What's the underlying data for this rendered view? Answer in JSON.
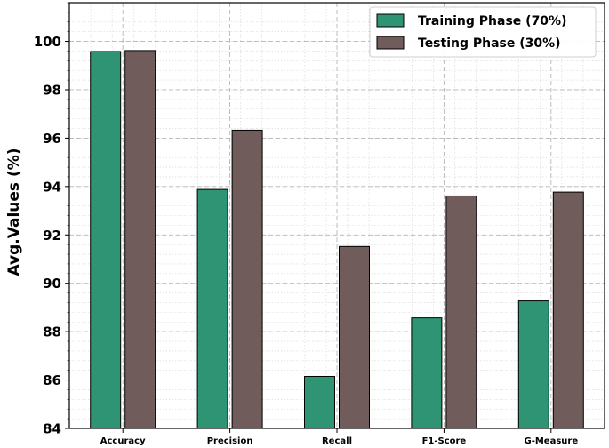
{
  "chart_data": {
    "type": "bar",
    "categories": [
      "Accuracy",
      "Precision",
      "Recall",
      "F1-Score",
      "G-Measure"
    ],
    "series": [
      {
        "name": "Training Phase (70%)",
        "color": "#2e9473",
        "values": [
          99.58,
          93.88,
          86.15,
          88.57,
          89.27
        ]
      },
      {
        "name": "Testing Phase (30%)",
        "color": "#6f5c5b",
        "values": [
          99.62,
          96.33,
          91.52,
          93.61,
          93.77
        ]
      }
    ],
    "ylabel": "Avg.Values (%)",
    "xlabel": "",
    "ylim": [
      84,
      101.6
    ],
    "yticks": [
      84,
      86,
      88,
      90,
      92,
      94,
      96,
      98,
      100
    ],
    "grid": true,
    "minor_grid": true,
    "legend_position": "top-right"
  }
}
